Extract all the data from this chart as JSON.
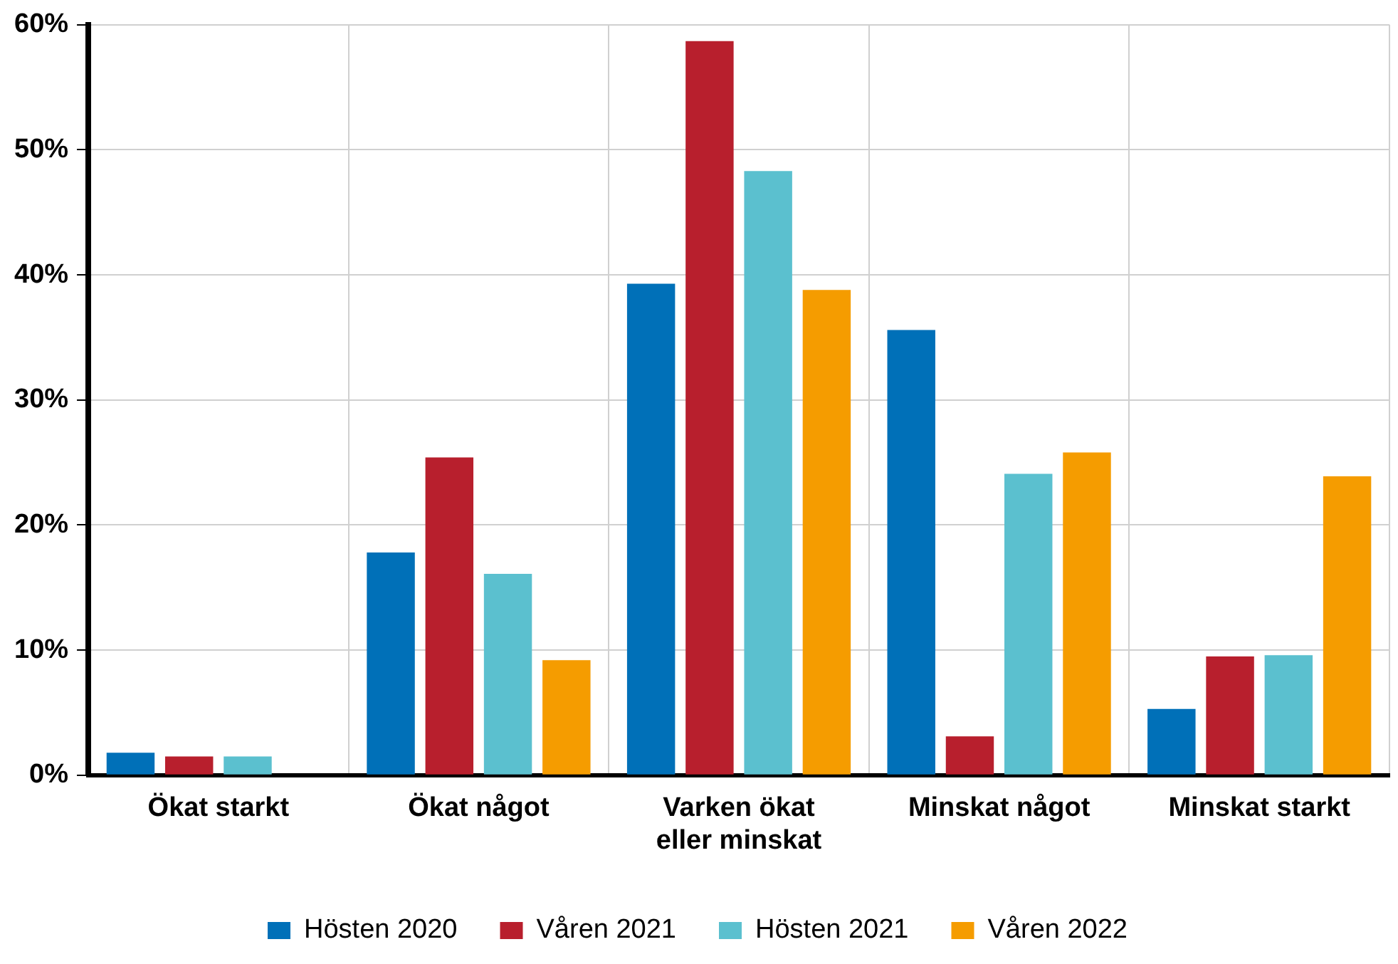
{
  "chart_data": {
    "type": "bar",
    "categories": [
      "Ökat starkt",
      "Ökat något",
      "Varken ökat eller minskat",
      "Minskat något",
      "Minskat starkt"
    ],
    "series": [
      {
        "name": "Hösten 2020",
        "color": "#0070b8",
        "values": [
          1.8,
          17.8,
          39.3,
          35.6,
          5.3
        ]
      },
      {
        "name": "Våren 2021",
        "color": "#b81f2d",
        "values": [
          1.5,
          25.4,
          58.7,
          3.1,
          9.5
        ]
      },
      {
        "name": "Hösten 2021",
        "color": "#5bc0cf",
        "values": [
          1.5,
          16.1,
          48.3,
          24.1,
          9.6
        ]
      },
      {
        "name": "Våren 2022",
        "color": "#f59c00",
        "values": [
          0,
          9.2,
          38.8,
          25.8,
          23.9
        ]
      }
    ],
    "ylim": [
      0,
      60
    ],
    "yticks": [
      {
        "value": 0,
        "label": "0%"
      },
      {
        "value": 10,
        "label": "10%"
      },
      {
        "value": 20,
        "label": "20%"
      },
      {
        "value": 30,
        "label": "30%"
      },
      {
        "value": 40,
        "label": "40%"
      },
      {
        "value": 50,
        "label": "50%"
      },
      {
        "value": 60,
        "label": "60%"
      }
    ],
    "grid": true,
    "legend": "bottom"
  }
}
